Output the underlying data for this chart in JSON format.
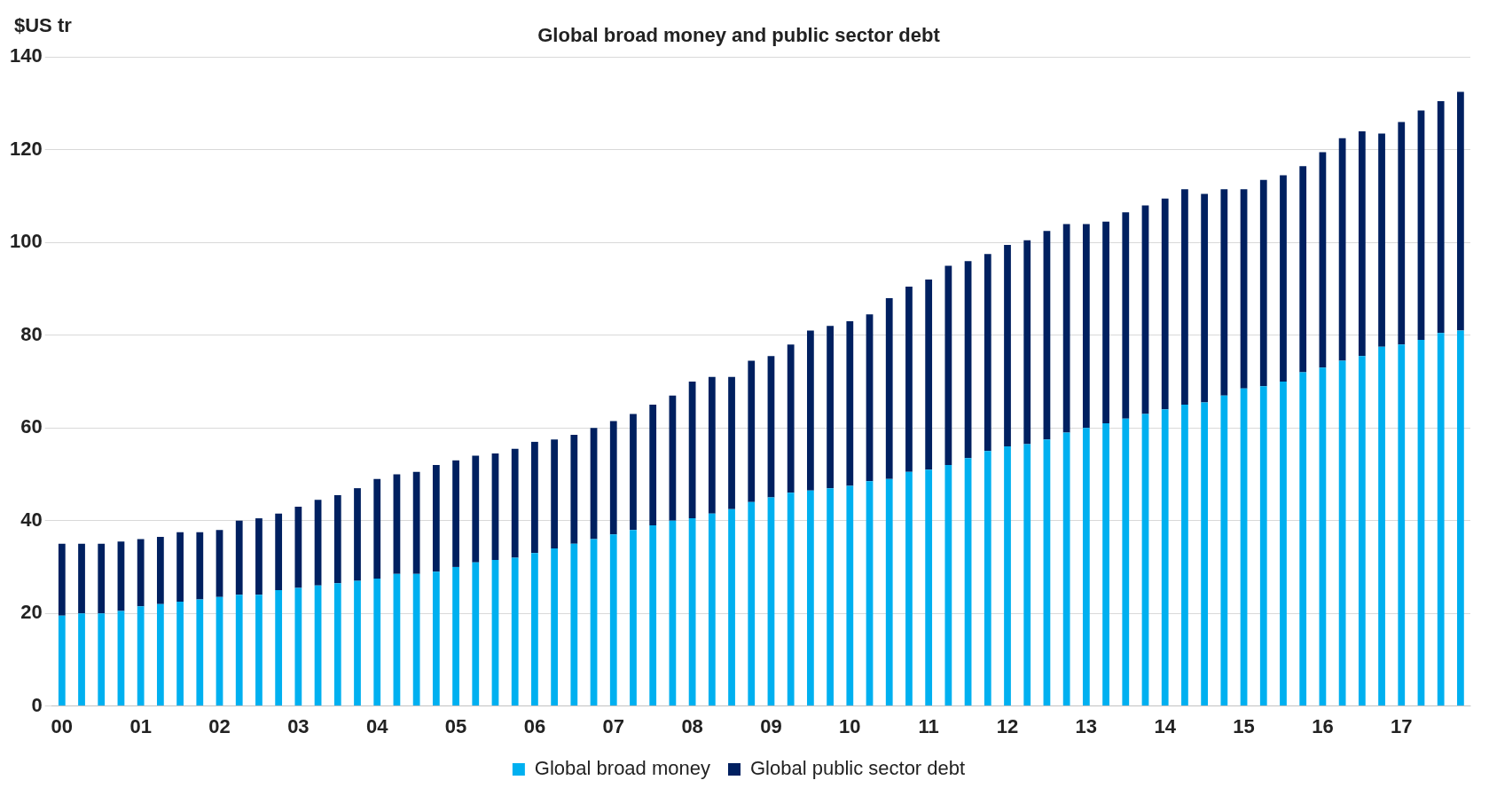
{
  "chart_data": {
    "type": "bar",
    "title": "Global broad money and public sector debt",
    "ylabel": "$US tr",
    "stacked": true,
    "grid": "y",
    "legend": "bottom",
    "ylim": [
      0,
      140
    ],
    "yticks": [
      0,
      20,
      40,
      60,
      80,
      100,
      120,
      140
    ],
    "categories": [
      "00",
      null,
      null,
      null,
      "01",
      null,
      null,
      null,
      "02",
      null,
      null,
      null,
      "03",
      null,
      null,
      null,
      "04",
      null,
      null,
      null,
      "05",
      null,
      null,
      null,
      "06",
      null,
      null,
      null,
      "07",
      null,
      null,
      null,
      "08",
      null,
      null,
      null,
      "09",
      null,
      null,
      null,
      "10",
      null,
      null,
      null,
      "11",
      null,
      null,
      null,
      "12",
      null,
      null,
      null,
      "13",
      null,
      null,
      null,
      "14",
      null,
      null,
      null,
      "15",
      null,
      null,
      null,
      "16",
      null,
      null,
      null,
      "17",
      null,
      null,
      null
    ],
    "series": [
      {
        "name": "Global broad money",
        "color": "#00b0f0",
        "values": [
          19.5,
          20,
          20,
          20.5,
          21.5,
          22,
          22.5,
          23,
          23.5,
          24,
          24,
          25,
          25.5,
          26,
          26.5,
          27,
          27.5,
          28.5,
          28.5,
          29,
          30,
          31,
          31.5,
          32,
          33,
          34,
          35,
          36,
          37,
          38,
          39,
          40,
          40.5,
          41.5,
          42.5,
          44,
          45,
          46,
          46.5,
          47,
          47.5,
          48.5,
          49,
          50.5,
          51,
          52,
          53.5,
          55,
          56,
          56.5,
          57.5,
          59,
          60,
          61,
          62,
          63,
          64,
          65,
          65.5,
          67,
          68.5,
          69,
          70,
          72,
          73,
          74.5,
          75.5,
          77.5,
          78,
          79,
          80.5,
          81
        ]
      },
      {
        "name": "Global public sector debt",
        "color": "#002060",
        "values": [
          15.5,
          15,
          15,
          15,
          14.5,
          14.5,
          15,
          14.5,
          14.5,
          16,
          16.5,
          16.5,
          17.5,
          18.5,
          19,
          20,
          21.5,
          21.5,
          22,
          23,
          23,
          23,
          23,
          23.5,
          24,
          23.5,
          23.5,
          24,
          24.5,
          25,
          26,
          27,
          29.5,
          29.5,
          28.5,
          30.5,
          30.5,
          32,
          34.5,
          35,
          35.5,
          36,
          39,
          40,
          41,
          43,
          42.5,
          42.5,
          43.5,
          44,
          45,
          45,
          44,
          43.5,
          44.5,
          45,
          45.5,
          46.5,
          45,
          44.5,
          43,
          44.5,
          44.5,
          44.5,
          46.5,
          48,
          48.5,
          46,
          48,
          49.5,
          50,
          51.5
        ]
      }
    ]
  }
}
